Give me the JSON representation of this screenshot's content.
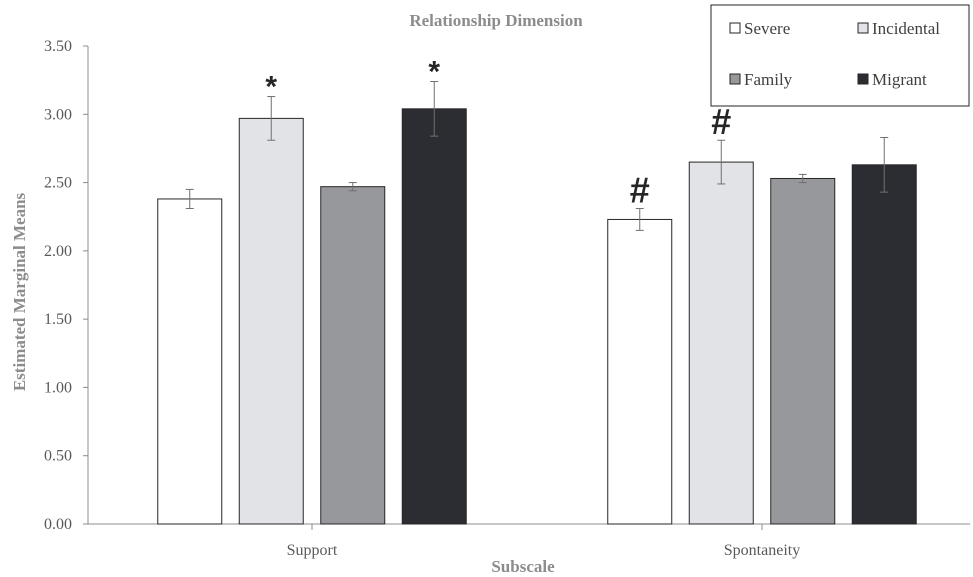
{
  "chart_data": {
    "type": "bar",
    "title": "Relationship Dimension",
    "xlabel": "Subscale",
    "ylabel": "Estimated Marginal Means",
    "ylim": [
      0,
      3.5
    ],
    "yticks": [
      "0.00",
      "0.50",
      "1.00",
      "1.50",
      "2.00",
      "2.50",
      "3.00",
      "3.50"
    ],
    "grid": false,
    "legend_position": "top-right",
    "categories": [
      "Support",
      "Spontaneity"
    ],
    "series": [
      {
        "name": "Severe",
        "color": "#ffffff",
        "values": [
          2.38,
          2.23
        ],
        "errors": [
          0.07,
          0.08
        ]
      },
      {
        "name": "Incidental",
        "color": "#e2e3e7",
        "values": [
          2.97,
          2.65
        ],
        "errors": [
          0.16,
          0.16
        ]
      },
      {
        "name": "Family",
        "color": "#97989c",
        "values": [
          2.47,
          2.53
        ],
        "errors": [
          0.03,
          0.03
        ]
      },
      {
        "name": "Migrant",
        "color": "#2b2d33",
        "values": [
          3.04,
          2.63
        ],
        "errors": [
          0.2,
          0.2
        ]
      }
    ],
    "annotations": [
      {
        "text": "*",
        "category": "Support",
        "series": "Incidental"
      },
      {
        "text": "*",
        "category": "Support",
        "series": "Migrant"
      },
      {
        "text": "#",
        "category": "Spontaneity",
        "series": "Severe"
      },
      {
        "text": "#",
        "category": "Spontaneity",
        "series": "Incidental"
      }
    ]
  }
}
